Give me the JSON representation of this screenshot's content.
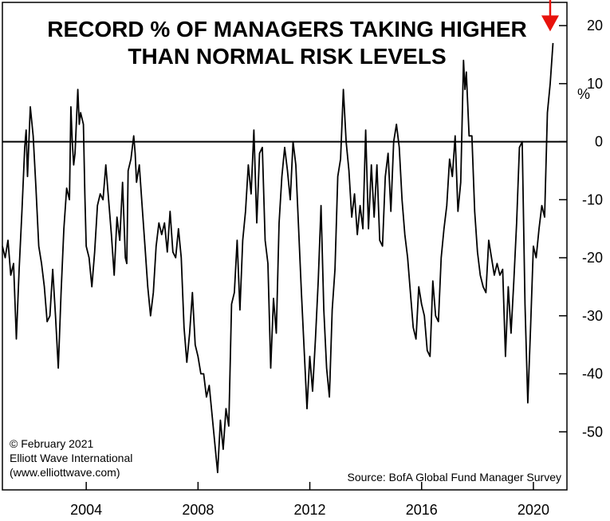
{
  "chart_data": {
    "type": "line",
    "title_lines": [
      "RECORD % OF MANAGERS TAKING HIGHER",
      "THAN NORMAL RISK LEVELS"
    ],
    "y_unit": "%",
    "ylim": [
      -60,
      24
    ],
    "xlim": [
      2001.0,
      2021.2
    ],
    "y_ticks": [
      20,
      10,
      0,
      -10,
      -20,
      -30,
      -40,
      -50
    ],
    "y_tick_labels": [
      "20",
      "10",
      "0",
      "-10",
      "-20",
      "-30",
      "-40",
      "-50"
    ],
    "x_ticks": [
      2004,
      2008,
      2012,
      2016,
      2020
    ],
    "x_tick_labels": [
      "2004",
      "2008",
      "2012",
      "2016",
      "2020"
    ],
    "reference_line": 0,
    "grid": false,
    "legend": "none",
    "copyright_lines": [
      "© February 2021",
      "Elliott Wave International",
      "(www.elliottwave.com)"
    ],
    "source": "Source: BofA Global Fund Manager Survey",
    "colors": {
      "line": "#000000",
      "zero_line": "#000000",
      "arrow": "#e8120c"
    },
    "annotation": {
      "type": "arrow",
      "x": 2020.6,
      "y": 19
    },
    "series": [
      {
        "points": [
          [
            2001.0,
            -18
          ],
          [
            2001.1,
            -20
          ],
          [
            2001.2,
            -17
          ],
          [
            2001.3,
            -23
          ],
          [
            2001.4,
            -21
          ],
          [
            2001.5,
            -34
          ],
          [
            2001.6,
            -22
          ],
          [
            2001.7,
            -12
          ],
          [
            2001.8,
            -1
          ],
          [
            2001.85,
            2
          ],
          [
            2001.9,
            -6
          ],
          [
            2002.0,
            6
          ],
          [
            2002.1,
            1
          ],
          [
            2002.2,
            -8
          ],
          [
            2002.3,
            -18
          ],
          [
            2002.4,
            -21
          ],
          [
            2002.5,
            -25
          ],
          [
            2002.6,
            -31
          ],
          [
            2002.7,
            -30
          ],
          [
            2002.8,
            -22
          ],
          [
            2002.9,
            -30
          ],
          [
            2003.0,
            -39
          ],
          [
            2003.1,
            -26
          ],
          [
            2003.2,
            -15
          ],
          [
            2003.3,
            -8
          ],
          [
            2003.4,
            -10
          ],
          [
            2003.45,
            6
          ],
          [
            2003.5,
            0
          ],
          [
            2003.55,
            -4
          ],
          [
            2003.6,
            -2
          ],
          [
            2003.7,
            9
          ],
          [
            2003.75,
            3
          ],
          [
            2003.8,
            5
          ],
          [
            2003.9,
            3
          ],
          [
            2003.95,
            -9
          ],
          [
            2004.0,
            -18
          ],
          [
            2004.1,
            -20
          ],
          [
            2004.2,
            -25
          ],
          [
            2004.3,
            -19
          ],
          [
            2004.4,
            -11
          ],
          [
            2004.5,
            -9
          ],
          [
            2004.6,
            -10
          ],
          [
            2004.7,
            -4
          ],
          [
            2004.8,
            -10
          ],
          [
            2004.9,
            -16
          ],
          [
            2005.0,
            -23
          ],
          [
            2005.1,
            -13
          ],
          [
            2005.2,
            -17
          ],
          [
            2005.3,
            -7
          ],
          [
            2005.4,
            -20
          ],
          [
            2005.45,
            -21
          ],
          [
            2005.5,
            -5
          ],
          [
            2005.6,
            -3
          ],
          [
            2005.7,
            1
          ],
          [
            2005.75,
            -2
          ],
          [
            2005.8,
            -7
          ],
          [
            2005.9,
            -4
          ],
          [
            2006.0,
            -11
          ],
          [
            2006.1,
            -18
          ],
          [
            2006.2,
            -25
          ],
          [
            2006.3,
            -30
          ],
          [
            2006.4,
            -26
          ],
          [
            2006.5,
            -18
          ],
          [
            2006.6,
            -14
          ],
          [
            2006.7,
            -16
          ],
          [
            2006.8,
            -14
          ],
          [
            2006.9,
            -19
          ],
          [
            2007.0,
            -12
          ],
          [
            2007.1,
            -19
          ],
          [
            2007.2,
            -20
          ],
          [
            2007.3,
            -15
          ],
          [
            2007.4,
            -20
          ],
          [
            2007.5,
            -32
          ],
          [
            2007.6,
            -38
          ],
          [
            2007.7,
            -33
          ],
          [
            2007.8,
            -26
          ],
          [
            2007.9,
            -35
          ],
          [
            2008.0,
            -37
          ],
          [
            2008.1,
            -40
          ],
          [
            2008.2,
            -40
          ],
          [
            2008.3,
            -44
          ],
          [
            2008.4,
            -42
          ],
          [
            2008.5,
            -47
          ],
          [
            2008.6,
            -52
          ],
          [
            2008.7,
            -57
          ],
          [
            2008.8,
            -48
          ],
          [
            2008.9,
            -53
          ],
          [
            2009.0,
            -46
          ],
          [
            2009.1,
            -49
          ],
          [
            2009.2,
            -28
          ],
          [
            2009.3,
            -26
          ],
          [
            2009.4,
            -17
          ],
          [
            2009.5,
            -29
          ],
          [
            2009.6,
            -17
          ],
          [
            2009.7,
            -12
          ],
          [
            2009.8,
            -4
          ],
          [
            2009.9,
            -9
          ],
          [
            2010.0,
            2
          ],
          [
            2010.1,
            -14
          ],
          [
            2010.2,
            -2
          ],
          [
            2010.3,
            -1
          ],
          [
            2010.4,
            -17
          ],
          [
            2010.5,
            -21
          ],
          [
            2010.6,
            -39
          ],
          [
            2010.7,
            -27
          ],
          [
            2010.8,
            -33
          ],
          [
            2010.9,
            -14
          ],
          [
            2011.0,
            -6
          ],
          [
            2011.1,
            -1
          ],
          [
            2011.2,
            -5
          ],
          [
            2011.3,
            -10
          ],
          [
            2011.4,
            0
          ],
          [
            2011.5,
            -4
          ],
          [
            2011.6,
            -15
          ],
          [
            2011.7,
            -26
          ],
          [
            2011.8,
            -36
          ],
          [
            2011.9,
            -46
          ],
          [
            2012.0,
            -37
          ],
          [
            2012.1,
            -43
          ],
          [
            2012.2,
            -34
          ],
          [
            2012.3,
            -24
          ],
          [
            2012.4,
            -11
          ],
          [
            2012.5,
            -29
          ],
          [
            2012.6,
            -39
          ],
          [
            2012.7,
            -44
          ],
          [
            2012.8,
            -29
          ],
          [
            2012.9,
            -22
          ],
          [
            2013.0,
            -6
          ],
          [
            2013.1,
            -3
          ],
          [
            2013.2,
            9
          ],
          [
            2013.3,
            0
          ],
          [
            2013.4,
            -5
          ],
          [
            2013.5,
            -13
          ],
          [
            2013.6,
            -9
          ],
          [
            2013.7,
            -16
          ],
          [
            2013.8,
            -11
          ],
          [
            2013.9,
            -15
          ],
          [
            2014.0,
            2
          ],
          [
            2014.1,
            -15
          ],
          [
            2014.2,
            -4
          ],
          [
            2014.3,
            -13
          ],
          [
            2014.4,
            -4
          ],
          [
            2014.5,
            -17
          ],
          [
            2014.6,
            -18
          ],
          [
            2014.7,
            -6
          ],
          [
            2014.8,
            -2
          ],
          [
            2014.9,
            -12
          ],
          [
            2015.0,
            0
          ],
          [
            2015.1,
            3
          ],
          [
            2015.2,
            -1
          ],
          [
            2015.3,
            -10
          ],
          [
            2015.4,
            -16
          ],
          [
            2015.5,
            -20
          ],
          [
            2015.6,
            -26
          ],
          [
            2015.7,
            -32
          ],
          [
            2015.8,
            -34
          ],
          [
            2015.9,
            -25
          ],
          [
            2016.0,
            -28
          ],
          [
            2016.1,
            -30
          ],
          [
            2016.2,
            -36
          ],
          [
            2016.3,
            -37
          ],
          [
            2016.4,
            -24
          ],
          [
            2016.5,
            -30
          ],
          [
            2016.6,
            -31
          ],
          [
            2016.7,
            -20
          ],
          [
            2016.8,
            -15
          ],
          [
            2016.9,
            -11
          ],
          [
            2017.0,
            -3
          ],
          [
            2017.1,
            -6
          ],
          [
            2017.2,
            1
          ],
          [
            2017.3,
            -12
          ],
          [
            2017.4,
            -7
          ],
          [
            2017.5,
            14
          ],
          [
            2017.55,
            9
          ],
          [
            2017.6,
            12
          ],
          [
            2017.7,
            1
          ],
          [
            2017.8,
            1
          ],
          [
            2017.9,
            -12
          ],
          [
            2018.0,
            -19
          ],
          [
            2018.1,
            -23
          ],
          [
            2018.2,
            -25
          ],
          [
            2018.3,
            -26
          ],
          [
            2018.4,
            -17
          ],
          [
            2018.5,
            -20
          ],
          [
            2018.6,
            -23
          ],
          [
            2018.7,
            -21
          ],
          [
            2018.8,
            -23
          ],
          [
            2018.9,
            -22
          ],
          [
            2019.0,
            -37
          ],
          [
            2019.1,
            -25
          ],
          [
            2019.2,
            -33
          ],
          [
            2019.3,
            -24
          ],
          [
            2019.4,
            -14
          ],
          [
            2019.5,
            -1
          ],
          [
            2019.6,
            0
          ],
          [
            2019.7,
            -28
          ],
          [
            2019.8,
            -45
          ],
          [
            2019.9,
            -32
          ],
          [
            2020.0,
            -18
          ],
          [
            2020.1,
            -20
          ],
          [
            2020.2,
            -15
          ],
          [
            2020.3,
            -11
          ],
          [
            2020.4,
            -13
          ],
          [
            2020.5,
            5
          ],
          [
            2020.6,
            10
          ],
          [
            2020.7,
            17
          ]
        ]
      }
    ]
  }
}
